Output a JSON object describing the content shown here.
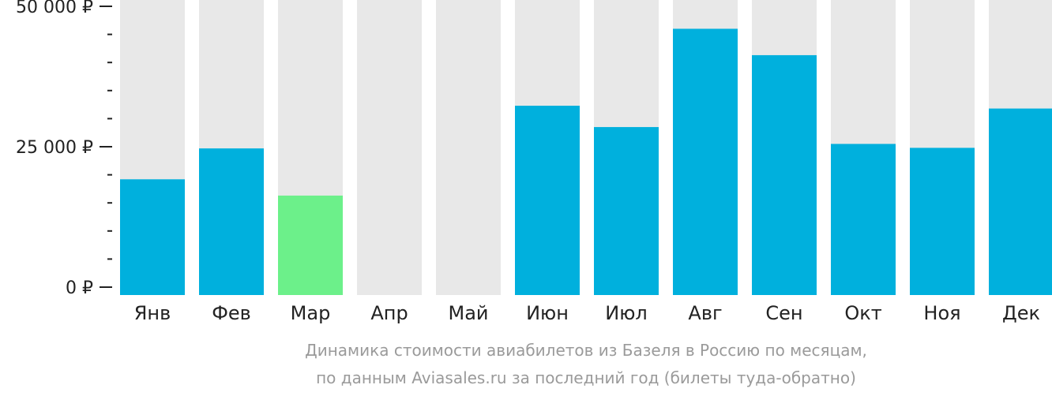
{
  "chart_data": {
    "type": "bar",
    "categories": [
      "Янв",
      "Фев",
      "Мар",
      "Апр",
      "Май",
      "Июн",
      "Июл",
      "Авг",
      "Сен",
      "Окт",
      "Ноя",
      "Дек"
    ],
    "values": [
      19200,
      24700,
      16300,
      null,
      null,
      32300,
      28500,
      46000,
      41300,
      25500,
      24800,
      31800
    ],
    "highlight_index": 2,
    "ylim": [
      0,
      50000
    ],
    "y_ticks": [
      {
        "value": 0,
        "label": "0 ₽"
      },
      {
        "value": 25000,
        "label": "25 000 ₽"
      },
      {
        "value": 50000,
        "label": "50 000 ₽"
      }
    ],
    "y_minor_step": 5000,
    "grid": false,
    "colors": {
      "bar": "#00b0dd",
      "highlight": "#6cf08a",
      "background_bar": "#e8e8e8",
      "axis": "#222222"
    }
  },
  "caption": {
    "line1": "Динамика стоимости авиабилетов из Базеля в Россию по месяцам,",
    "line2": "по данным Aviasales.ru за последний год (билеты туда-обратно)"
  }
}
